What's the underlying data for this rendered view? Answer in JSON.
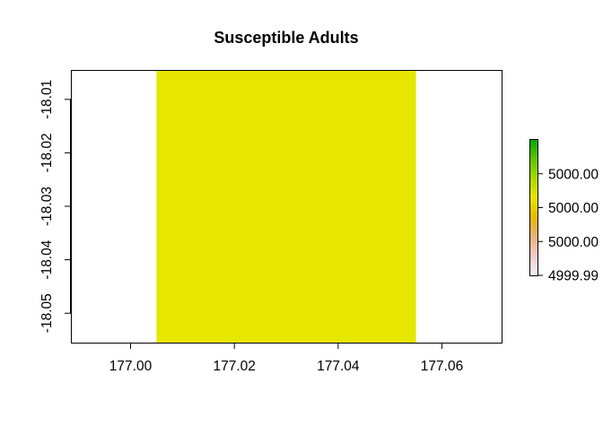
{
  "chart_data": {
    "type": "heatmap",
    "title": "Susceptible Adults",
    "xlabel": "",
    "ylabel": "",
    "xlim": [
      176.9885,
      177.0715
    ],
    "ylim": [
      -18.0555,
      -18.0045
    ],
    "x_ticks": [
      {
        "value": 177.0,
        "label": "177.00"
      },
      {
        "value": 177.02,
        "label": "177.02"
      },
      {
        "value": 177.04,
        "label": "177.04"
      },
      {
        "value": 177.06,
        "label": "177.06"
      }
    ],
    "y_ticks": [
      {
        "value": -18.01,
        "label": "-18.01"
      },
      {
        "value": -18.02,
        "label": "-18.02"
      },
      {
        "value": -18.03,
        "label": "-18.03"
      },
      {
        "value": -18.04,
        "label": "-18.04"
      },
      {
        "value": -18.05,
        "label": "-18.05"
      }
    ],
    "cells": [
      {
        "x0": 177.005,
        "x1": 177.055,
        "y0": -18.0555,
        "y1": -18.0045,
        "value": 5000.0,
        "color": "#e6e600"
      }
    ],
    "legend": {
      "placement": "right",
      "range": [
        4999.99,
        5000.01
      ],
      "colors": [
        "#f2f2f2",
        "#f2cccc",
        "#ebb07a",
        "#e6b800",
        "#e6e600",
        "#a9d800",
        "#5cc400",
        "#00a600"
      ],
      "tick_labels": [
        "5000.00",
        "5000.00",
        "5000.00",
        "4999.99"
      ],
      "tick_positions": [
        0.75,
        0.5,
        0.25,
        0.0
      ]
    },
    "grid": false
  }
}
